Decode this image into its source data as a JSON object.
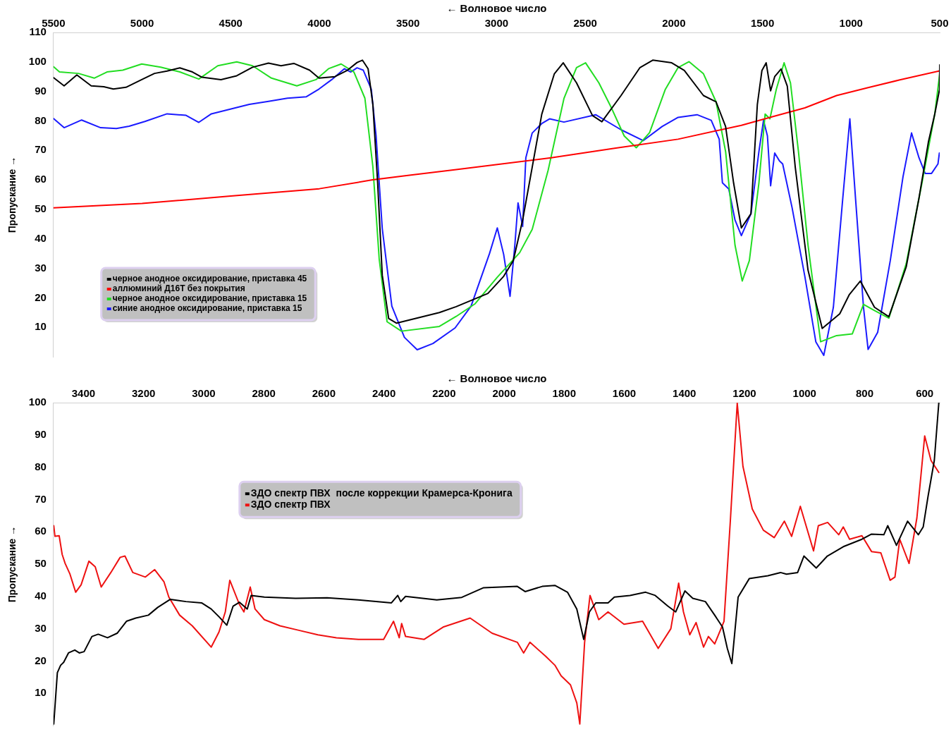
{
  "chart_data": [
    {
      "type": "line",
      "xlabel": "← Волновое число",
      "ylabel": "Пропускание →",
      "xlim": [
        5500,
        500
      ],
      "xticks": [
        5500,
        5000,
        4500,
        4000,
        3500,
        3000,
        2500,
        2000,
        1500,
        1000,
        500
      ],
      "ylim": [
        0,
        110
      ],
      "yticks": [
        10,
        20,
        30,
        40,
        50,
        60,
        70,
        80,
        90,
        100,
        110
      ],
      "grid": false,
      "legend": "bottom left",
      "marker": "none",
      "line_style": "solid",
      "series": [
        {
          "name": "черное анодное оксидирование, приставка 45",
          "color": "#000000",
          "x": [
            5500,
            5440,
            5368,
            5287,
            5216,
            5162,
            5091,
            5002,
            4930,
            4859,
            4787,
            4716,
            4662,
            4555,
            4466,
            4377,
            4287,
            4216,
            4144,
            4055,
            4002,
            3912,
            3841,
            3787,
            3757,
            3725,
            3698,
            3671,
            3645,
            3609,
            3564,
            3323,
            3228,
            3049,
            2960,
            2906,
            2853,
            2799,
            2745,
            2674,
            2624,
            2549,
            2459,
            2406,
            2298,
            2191,
            2119,
            2012,
            1941,
            1833,
            1762,
            1708,
            1663,
            1619,
            1565,
            1529,
            1503,
            1479,
            1454,
            1431,
            1395,
            1360,
            1315,
            1243,
            1163,
            1064,
            1011,
            948,
            868,
            787,
            689,
            617,
            564,
            528,
            501,
            500
          ],
          "values": [
            94.7,
            91.9,
            95.6,
            91.9,
            91.6,
            90.8,
            91.4,
            94,
            96.1,
            96.9,
            98,
            96.6,
            94.8,
            94,
            95.3,
            98.2,
            99.6,
            98.7,
            99.5,
            97.2,
            94.5,
            95,
            97.2,
            99.8,
            100.6,
            97.7,
            85.6,
            59,
            27.7,
            13,
            11.4,
            15,
            17,
            21.5,
            27.3,
            32.6,
            46.4,
            64.3,
            82.3,
            96,
            99.7,
            92.9,
            81.8,
            79.7,
            88.6,
            98.1,
            100.6,
            99.7,
            97.1,
            88.6,
            86.5,
            78.1,
            59,
            43.7,
            48.5,
            85.5,
            97.1,
            99.7,
            90.2,
            95,
            97.6,
            91.8,
            64.3,
            29.4,
            9.6,
            14.6,
            21,
            25.7,
            16.8,
            13.6,
            30.5,
            53.8,
            72.8,
            82.3,
            90.7,
            99
          ]
        },
        {
          "name": "аллюминий Д16Т без покрытия",
          "color": "#ff0000",
          "x": [
            5500,
            5000,
            4500,
            4000,
            3700,
            3500,
            3228,
            2692,
            2334,
            1976,
            1619,
            1440,
            1261,
            1082,
            904,
            725,
            500
          ],
          "values": [
            50.5,
            52,
            54.5,
            57,
            60,
            61.5,
            63.5,
            67.5,
            70.7,
            73.8,
            78.5,
            81.5,
            84.4,
            88.6,
            91.3,
            93.9,
            97
          ]
        },
        {
          "name": "черное анодное оксидирование, приставка 15",
          "color": "#22dd22",
          "x": [
            5500,
            5466,
            5359,
            5270,
            5198,
            5109,
            5002,
            4895,
            4787,
            4680,
            4573,
            4466,
            4377,
            4270,
            4127,
            4019,
            3948,
            3877,
            3805,
            3743,
            3698,
            3662,
            3618,
            3537,
            3323,
            3228,
            3121,
            2996,
            2870,
            2799,
            2709,
            2620,
            2549,
            2498,
            2423,
            2352,
            2280,
            2212,
            2137,
            2048,
            1976,
            1914,
            1833,
            1762,
            1708,
            1655,
            1614,
            1574,
            1520,
            1485,
            1458,
            1422,
            1378,
            1342,
            1297,
            1243,
            1172,
            1082,
            993,
            930,
            868,
            787,
            689,
            600,
            528,
            500
          ],
          "values": [
            98.4,
            96.6,
            96.1,
            94.5,
            96.6,
            97.2,
            99.3,
            98.2,
            96.6,
            94.2,
            98.7,
            100,
            98.7,
            94.5,
            91.9,
            94,
            97.7,
            99.3,
            96.6,
            87.7,
            64.5,
            33,
            11.9,
            8.7,
            10.3,
            13.7,
            18,
            27,
            35.3,
            43.2,
            63.3,
            87.6,
            98.1,
            99.7,
            92.9,
            84.4,
            74.9,
            70.9,
            76,
            90.7,
            98.1,
            100.1,
            96,
            86.5,
            69.6,
            37.9,
            25.7,
            32.6,
            59,
            82.3,
            80.7,
            90.7,
            99.7,
            92.9,
            69.6,
            37.9,
            5.1,
            7.2,
            7.8,
            17.8,
            15.7,
            13.1,
            31.6,
            59,
            82.3,
            96
          ]
        },
        {
          "name": "синие анодное оксидирование, приставка 15",
          "color": "#1a1aff",
          "x": [
            5500,
            5440,
            5341,
            5234,
            5145,
            5073,
            4984,
            4859,
            4752,
            4680,
            4609,
            4502,
            4395,
            4287,
            4180,
            4073,
            4002,
            3930,
            3859,
            3823,
            3787,
            3752,
            3707,
            3680,
            3645,
            3591,
            3520,
            3448,
            3359,
            3234,
            3144,
            3040,
            2996,
            2960,
            2924,
            2897,
            2879,
            2853,
            2835,
            2799,
            2745,
            2701,
            2620,
            2441,
            2298,
            2173,
            2066,
            1976,
            1869,
            1789,
            1744,
            1726,
            1690,
            1655,
            1619,
            1565,
            1520,
            1494,
            1472,
            1454,
            1431,
            1404,
            1386,
            1333,
            1261,
            1199,
            1154,
            1100,
            1047,
            1007,
            975,
            930,
            904,
            850,
            779,
            707,
            659,
            617,
            582,
            546,
            510,
            502
          ],
          "values": [
            80.8,
            77.7,
            80.3,
            77.7,
            77.4,
            78.2,
            79.8,
            82.4,
            81.9,
            79.5,
            82.4,
            84,
            85.6,
            86.6,
            87.7,
            88.2,
            90.8,
            94,
            97.7,
            96.6,
            98,
            97.2,
            90.8,
            75,
            43.5,
            17.2,
            6.6,
            2.4,
            4.5,
            9.8,
            17.2,
            35,
            43.7,
            34.7,
            20.5,
            37.9,
            52.2,
            44.2,
            67.5,
            75.9,
            79.1,
            80.7,
            79.6,
            82.1,
            77,
            73.3,
            78.1,
            81.2,
            82.1,
            80.2,
            73.8,
            59,
            56.9,
            46.4,
            41.1,
            48.5,
            69.6,
            80.2,
            74.9,
            58,
            69.1,
            66.4,
            65.4,
            50.6,
            27.3,
            5.1,
            0.5,
            16.8,
            53.7,
            80.7,
            53.7,
            16.8,
            2.5,
            8.3,
            32.6,
            61.1,
            75.9,
            67.5,
            62.2,
            62.2,
            65.4,
            69.1
          ]
        }
      ]
    },
    {
      "type": "line",
      "xlabel": "← Волновое число",
      "ylabel": "Пропускание →",
      "xlim": [
        3500,
        550
      ],
      "xticks": [
        3400,
        3200,
        3000,
        2800,
        2600,
        2400,
        2200,
        2000,
        1800,
        1600,
        1400,
        1200,
        1000,
        800,
        600
      ],
      "ylim": [
        0,
        100
      ],
      "yticks": [
        10,
        20,
        30,
        40,
        50,
        60,
        70,
        80,
        90,
        100
      ],
      "grid": false,
      "legend": "top",
      "marker": "none",
      "line_style": "solid",
      "series": [
        {
          "name": "ЗДО спектр ПВХ  после коррекции Крамерса-Кронига",
          "color": "#000000",
          "x": [
            3499,
            3487,
            3476,
            3466,
            3450,
            3429,
            3414,
            3398,
            3372,
            3351,
            3320,
            3288,
            3257,
            3226,
            3184,
            3153,
            3111,
            3059,
            3007,
            2975,
            2949,
            2923,
            2902,
            2881,
            2855,
            2842,
            2798,
            2694,
            2589,
            2485,
            2375,
            2354,
            2344,
            2328,
            2224,
            2141,
            2068,
            1956,
            1930,
            1873,
            1831,
            1789,
            1758,
            1735,
            1716,
            1695,
            1654,
            1633,
            1581,
            1529,
            1497,
            1455,
            1429,
            1398,
            1372,
            1330,
            1299,
            1273,
            1257,
            1242,
            1221,
            1184,
            1122,
            1080,
            1060,
            1023,
            1002,
            961,
            924,
            871,
            809,
            777,
            736,
            723,
            694,
            657,
            621,
            605,
            589,
            568,
            553
          ],
          "values": [
            0.5,
            16.4,
            18.7,
            19.6,
            22.5,
            23.4,
            22.5,
            22.9,
            27.6,
            28.3,
            27.2,
            28.6,
            32.3,
            33.3,
            34.2,
            36.6,
            39.1,
            38.4,
            38,
            36.1,
            33.7,
            31.1,
            37,
            38.2,
            36.1,
            40.3,
            39.8,
            39.4,
            39.6,
            38.9,
            38,
            40.3,
            38.4,
            40,
            38.9,
            39.7,
            42.7,
            43.1,
            41.5,
            43.1,
            43.4,
            41.3,
            36.1,
            26.7,
            35.2,
            38,
            38,
            39.8,
            40.3,
            41.3,
            40.3,
            37,
            35.2,
            41.7,
            39.4,
            38.4,
            34.2,
            30.5,
            23.9,
            19.2,
            39.8,
            45.5,
            46.4,
            47.4,
            46.9,
            47.4,
            52.5,
            48.8,
            52.5,
            55.4,
            57.7,
            59.3,
            59.1,
            61.9,
            55.8,
            63.3,
            59.1,
            61.5,
            70.9,
            82.1,
            100
          ]
        },
        {
          "name": "ЗДО спектр ПВХ",
          "color": "#ee1111",
          "x": [
            3499,
            3495,
            3481,
            3471,
            3461,
            3445,
            3426,
            3408,
            3382,
            3361,
            3341,
            3309,
            3278,
            3262,
            3236,
            3194,
            3163,
            3132,
            3116,
            3080,
            3038,
            2975,
            2949,
            2928,
            2913,
            2881,
            2866,
            2845,
            2829,
            2798,
            2746,
            2683,
            2620,
            2558,
            2485,
            2401,
            2368,
            2349,
            2341,
            2328,
            2266,
            2203,
            2113,
            2040,
            1956,
            1935,
            1914,
            1862,
            1831,
            1810,
            1779,
            1758,
            1748,
            1732,
            1714,
            1685,
            1654,
            1601,
            1539,
            1487,
            1445,
            1419,
            1403,
            1382,
            1361,
            1336,
            1320,
            1299,
            1268,
            1247,
            1224,
            1205,
            1174,
            1137,
            1101,
            1067,
            1043,
            1014,
            970,
            954,
            923,
            886,
            871,
            850,
            809,
            777,
            746,
            715,
            699,
            683,
            652,
            626,
            600,
            579,
            553
          ],
          "values": [
            61.9,
            58.6,
            58.8,
            53,
            50.2,
            46.9,
            41.3,
            43.6,
            50.9,
            49.2,
            42.9,
            47.4,
            52.1,
            52.5,
            47.4,
            46,
            48.3,
            44.5,
            39.8,
            34.2,
            30.9,
            24.3,
            29,
            35.2,
            45,
            37.5,
            35.2,
            42.9,
            36.1,
            32.8,
            30.9,
            29.5,
            28.1,
            27.2,
            26.7,
            26.7,
            32.3,
            27.2,
            31.6,
            27.6,
            26.7,
            30.5,
            33.3,
            28.6,
            25.8,
            22.5,
            25.8,
            21.5,
            18.7,
            15.4,
            12.6,
            7,
            0.5,
            25.8,
            40.3,
            32.8,
            35.2,
            31.4,
            32.3,
            23.9,
            30,
            44.1,
            35.2,
            28.1,
            31.9,
            24.3,
            27.6,
            25.3,
            32.3,
            63.3,
            99.8,
            80.3,
            67.1,
            60.5,
            58.2,
            63.3,
            58.6,
            67.9,
            54.1,
            61.9,
            62.9,
            59.1,
            61.5,
            57.7,
            58.8,
            53.9,
            53.5,
            45,
            46,
            57.7,
            50.2,
            64.3,
            89.7,
            82.1,
            78.4
          ]
        }
      ]
    }
  ]
}
